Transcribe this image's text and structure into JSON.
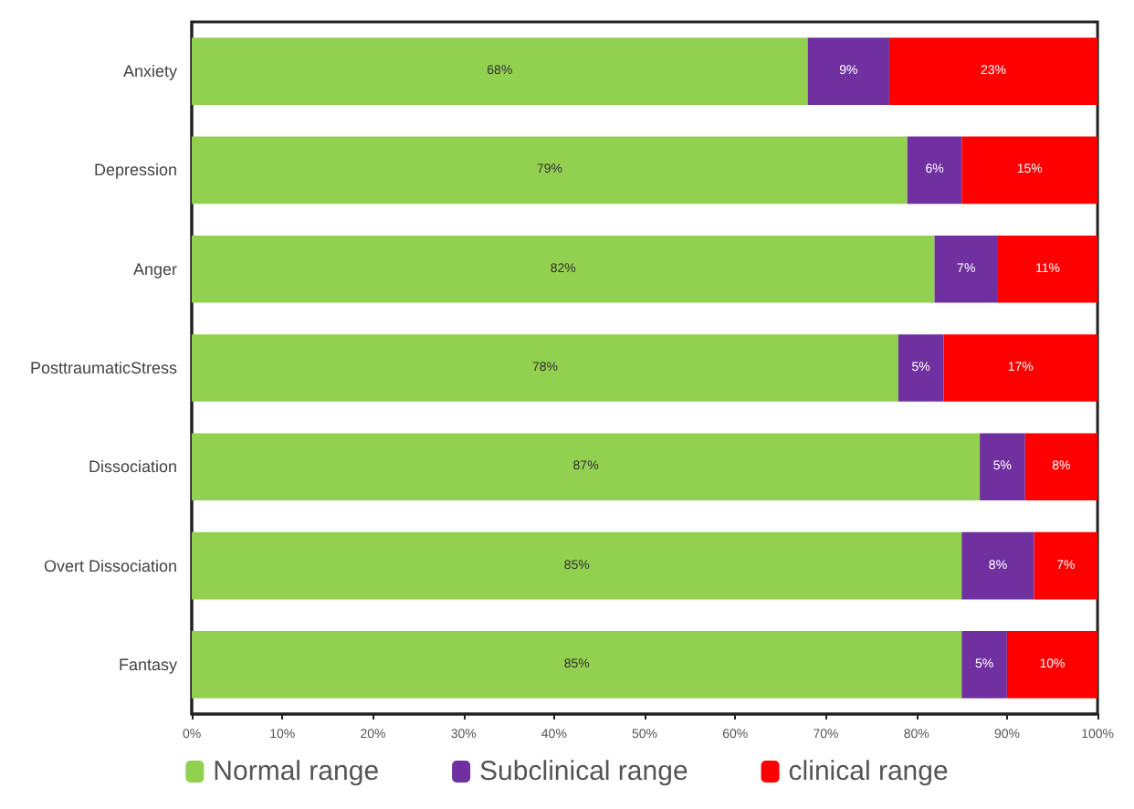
{
  "chart_data": {
    "type": "bar",
    "orientation": "horizontal",
    "stacked": true,
    "categories": [
      "Anxiety",
      "Depression",
      "Anger",
      "PosttraumaticStress",
      "Dissociation",
      "Overt Dissociation",
      "Fantasy"
    ],
    "series": [
      {
        "name": "Normal range",
        "color": "#92d050",
        "values": [
          68,
          79,
          82,
          78,
          87,
          85,
          85
        ],
        "value_labels": [
          "68%",
          "79%",
          "82%",
          "78%",
          "87%",
          "85%",
          "85%"
        ]
      },
      {
        "name": "Subclinical range",
        "color": "#7030a0",
        "values": [
          9,
          6,
          7,
          5,
          5,
          8,
          5
        ],
        "value_labels": [
          "9%",
          "6%",
          "7%",
          "5%",
          "5%",
          "8%",
          "5%"
        ]
      },
      {
        "name": "clinical range",
        "color": "#ff0000",
        "values": [
          23,
          15,
          11,
          17,
          8,
          7,
          10
        ],
        "value_labels": [
          "23%",
          "15%",
          "11%",
          "17%",
          "8%",
          "7%",
          "10%"
        ]
      }
    ],
    "xlim": [
      0,
      100
    ],
    "xticks": [
      {
        "value": 0,
        "label": "0%"
      },
      {
        "value": 10,
        "label": "10%"
      },
      {
        "value": 20,
        "label": "20%"
      },
      {
        "value": 30,
        "label": "30%"
      },
      {
        "value": 40,
        "label": "40%"
      },
      {
        "value": 50,
        "label": "50%"
      },
      {
        "value": 60,
        "label": "60%"
      },
      {
        "value": 70,
        "label": "70%"
      },
      {
        "value": 80,
        "label": "80%"
      },
      {
        "value": 90,
        "label": "90%"
      },
      {
        "value": 100,
        "label": "100%"
      }
    ],
    "grid": false,
    "legend": "bottom"
  }
}
